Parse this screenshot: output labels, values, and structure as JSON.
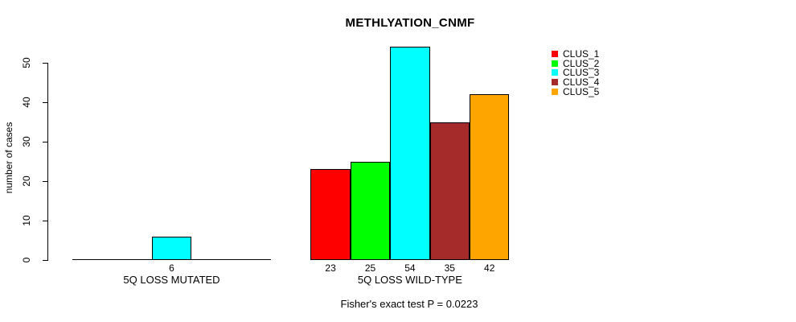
{
  "chart_data": {
    "type": "bar",
    "title": "METHLYATION_CNMF",
    "ylabel": "number of cases",
    "xlabel": "",
    "ylim": [
      0,
      50
    ],
    "yticks": [
      0,
      10,
      20,
      30,
      40,
      50
    ],
    "grid": false,
    "legend_position": "topright",
    "categories": [
      "5Q LOSS MUTATED",
      "5Q LOSS WILD-TYPE"
    ],
    "series": [
      {
        "name": "CLUS_1",
        "color": "#FF0000",
        "values": [
          0,
          23
        ]
      },
      {
        "name": "CLUS_2",
        "color": "#00FF00",
        "values": [
          0,
          25
        ]
      },
      {
        "name": "CLUS_3",
        "color": "#00FFFF",
        "values": [
          6,
          54
        ]
      },
      {
        "name": "CLUS_4",
        "color": "#A52A2A",
        "values": [
          0,
          35
        ]
      },
      {
        "name": "CLUS_5",
        "color": "#FFA500",
        "values": [
          0,
          42
        ]
      }
    ],
    "bar_value_labels": [
      [
        "",
        "",
        "6",
        "",
        ""
      ],
      [
        "23",
        "25",
        "54",
        "35",
        "42"
      ]
    ],
    "annotation": "Fisher's exact test P = 0.0223"
  }
}
